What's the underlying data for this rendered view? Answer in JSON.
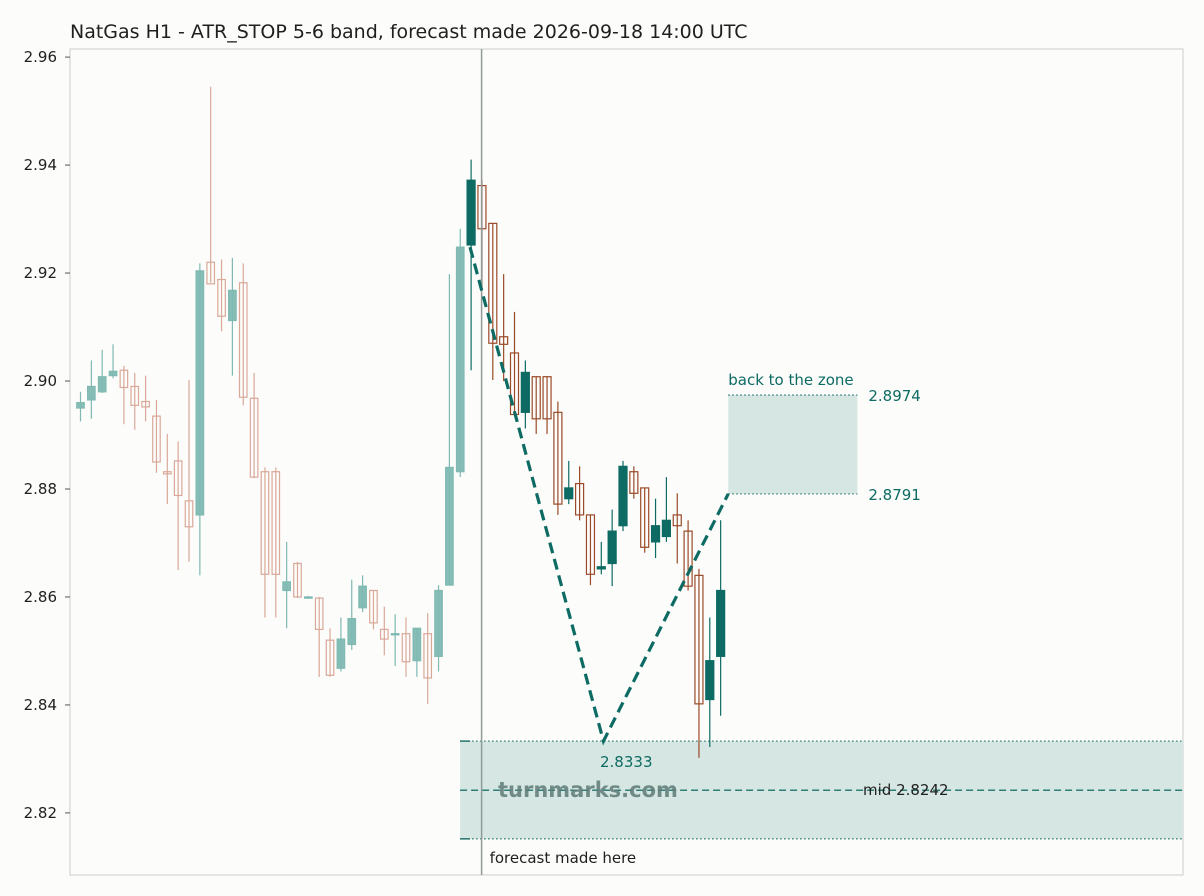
{
  "chart_data": {
    "type": "candlestick",
    "title": "NatGas H1 - ATR_STOP 5-6 band, forecast made 2026-09-18 14:00 UTC",
    "ylim": [
      2.8085,
      2.9615
    ],
    "yticks": [
      2.82,
      2.84,
      2.86,
      2.88,
      2.9,
      2.92,
      2.94,
      2.96
    ],
    "n_bars": 101,
    "forecast_bar_index": 36,
    "history": [
      {
        "o": 2.895,
        "h": 2.898,
        "l": 2.8925,
        "c": 2.896
      },
      {
        "o": 2.8965,
        "h": 2.9038,
        "l": 2.893,
        "c": 2.899
      },
      {
        "o": 2.898,
        "h": 2.9058,
        "l": 2.8978,
        "c": 2.9008
      },
      {
        "o": 2.901,
        "h": 2.9068,
        "l": 2.9005,
        "c": 2.9018
      },
      {
        "o": 2.902,
        "h": 2.9028,
        "l": 2.892,
        "c": 2.8988
      },
      {
        "o": 2.899,
        "h": 2.9015,
        "l": 2.891,
        "c": 2.8955
      },
      {
        "o": 2.8962,
        "h": 2.901,
        "l": 2.8925,
        "c": 2.8952
      },
      {
        "o": 2.8935,
        "h": 2.8965,
        "l": 2.883,
        "c": 2.885
      },
      {
        "o": 2.8832,
        "h": 2.8902,
        "l": 2.8772,
        "c": 2.8828
      },
      {
        "o": 2.8852,
        "h": 2.8888,
        "l": 2.865,
        "c": 2.8788
      },
      {
        "o": 2.8778,
        "h": 2.9002,
        "l": 2.8665,
        "c": 2.873
      },
      {
        "o": 2.8752,
        "h": 2.9218,
        "l": 2.864,
        "c": 2.9204
      },
      {
        "o": 2.922,
        "h": 2.9545,
        "l": 2.9182,
        "c": 2.918
      },
      {
        "o": 2.9188,
        "h": 2.9225,
        "l": 2.9092,
        "c": 2.912
      },
      {
        "o": 2.9112,
        "h": 2.9228,
        "l": 2.901,
        "c": 2.9168
      },
      {
        "o": 2.9182,
        "h": 2.9218,
        "l": 2.8955,
        "c": 2.897
      },
      {
        "o": 2.8968,
        "h": 2.9015,
        "l": 2.882,
        "c": 2.8822
      },
      {
        "o": 2.8832,
        "h": 2.884,
        "l": 2.8562,
        "c": 2.8642
      },
      {
        "o": 2.8832,
        "h": 2.884,
        "l": 2.8562,
        "c": 2.8642
      },
      {
        "o": 2.8612,
        "h": 2.8702,
        "l": 2.8542,
        "c": 2.8628
      },
      {
        "o": 2.8662,
        "h": 2.8665,
        "l": 2.8598,
        "c": 2.86
      },
      {
        "o": 2.86,
        "h": 2.8602,
        "l": 2.8598,
        "c": 2.86
      },
      {
        "o": 2.8598,
        "h": 2.86,
        "l": 2.8452,
        "c": 2.854
      },
      {
        "o": 2.852,
        "h": 2.8542,
        "l": 2.8452,
        "c": 2.8455
      },
      {
        "o": 2.8468,
        "h": 2.8562,
        "l": 2.8462,
        "c": 2.8522
      },
      {
        "o": 2.8512,
        "h": 2.8632,
        "l": 2.8502,
        "c": 2.856
      },
      {
        "o": 2.858,
        "h": 2.864,
        "l": 2.8572,
        "c": 2.862
      },
      {
        "o": 2.8612,
        "h": 2.8612,
        "l": 2.854,
        "c": 2.8552
      },
      {
        "o": 2.854,
        "h": 2.8582,
        "l": 2.8492,
        "c": 2.8522
      },
      {
        "o": 2.8532,
        "h": 2.8568,
        "l": 2.8472,
        "c": 2.8532
      },
      {
        "o": 2.8532,
        "h": 2.8562,
        "l": 2.8452,
        "c": 2.848
      },
      {
        "o": 2.8482,
        "h": 2.8542,
        "l": 2.8452,
        "c": 2.8542
      },
      {
        "o": 2.8532,
        "h": 2.857,
        "l": 2.8402,
        "c": 2.845
      },
      {
        "o": 2.849,
        "h": 2.8622,
        "l": 2.8462,
        "c": 2.8612
      },
      {
        "o": 2.8622,
        "h": 2.9198,
        "l": 2.8622,
        "c": 2.884
      },
      {
        "o": 2.8832,
        "h": 2.9282,
        "l": 2.8822,
        "c": 2.9248
      }
    ],
    "forecast": [
      {
        "o": 2.9252,
        "h": 2.941,
        "l": 2.902,
        "c": 2.9372
      },
      {
        "o": 2.9362,
        "h": 2.9372,
        "l": 2.9172,
        "c": 2.9282
      },
      {
        "o": 2.9292,
        "h": 2.9292,
        "l": 2.9002,
        "c": 2.907
      },
      {
        "o": 2.9082,
        "h": 2.9198,
        "l": 2.9,
        "c": 2.9068
      },
      {
        "o": 2.9052,
        "h": 2.9128,
        "l": 2.8938,
        "c": 2.8938
      },
      {
        "o": 2.8942,
        "h": 2.9038,
        "l": 2.8912,
        "c": 2.9016
      },
      {
        "o": 2.9008,
        "h": 2.9008,
        "l": 2.8902,
        "c": 2.893
      },
      {
        "o": 2.9008,
        "h": 2.9008,
        "l": 2.8902,
        "c": 2.893
      },
      {
        "o": 2.8942,
        "h": 2.8962,
        "l": 2.8752,
        "c": 2.8772
      },
      {
        "o": 2.8782,
        "h": 2.8852,
        "l": 2.8772,
        "c": 2.8802
      },
      {
        "o": 2.881,
        "h": 2.8842,
        "l": 2.8742,
        "c": 2.8752
      },
      {
        "o": 2.8752,
        "h": 2.8752,
        "l": 2.8622,
        "c": 2.8642
      },
      {
        "o": 2.8652,
        "h": 2.8702,
        "l": 2.8642,
        "c": 2.8656
      },
      {
        "o": 2.8662,
        "h": 2.8762,
        "l": 2.862,
        "c": 2.8722
      },
      {
        "o": 2.8732,
        "h": 2.8852,
        "l": 2.8722,
        "c": 2.8842
      },
      {
        "o": 2.8832,
        "h": 2.8842,
        "l": 2.8782,
        "c": 2.8792
      },
      {
        "o": 2.8802,
        "h": 2.8802,
        "l": 2.8682,
        "c": 2.8692
      },
      {
        "o": 2.8702,
        "h": 2.8782,
        "l": 2.8672,
        "c": 2.8732
      },
      {
        "o": 2.8712,
        "h": 2.8822,
        "l": 2.8702,
        "c": 2.8742
      },
      {
        "o": 2.8752,
        "h": 2.8792,
        "l": 2.8662,
        "c": 2.8732
      },
      {
        "o": 2.8722,
        "h": 2.8742,
        "l": 2.8612,
        "c": 2.862
      },
      {
        "o": 2.864,
        "h": 2.8652,
        "l": 2.8302,
        "c": 2.8402
      },
      {
        "o": 2.841,
        "h": 2.8562,
        "l": 2.8322,
        "c": 2.8482
      },
      {
        "o": 2.849,
        "h": 2.8742,
        "l": 2.838,
        "c": 2.8612
      }
    ],
    "path": [
      {
        "bar": 35.9,
        "y": 2.9248
      },
      {
        "bar": 48.2,
        "y": 2.8333
      },
      {
        "bar": 59.7,
        "y": 2.8791
      }
    ],
    "target_zone": {
      "label": "back to the zone",
      "low": 2.8791,
      "high": 2.8974,
      "label_low": "2.8791",
      "label_high": "2.8974",
      "start_bar": 59.7,
      "end_bar": 71.6
    },
    "stop_zone": {
      "low": 2.8152,
      "high": 2.8333,
      "mid": 2.8242,
      "label_low": "2.8333",
      "mid_label": "mid 2.8242"
    },
    "forecast_label": "forecast made here",
    "watermark": "turnmarks.com",
    "colors": {
      "up_hist": "#7fb9b2",
      "down_hist": "#d9a899",
      "up": "#0d6b63",
      "down": "#9a4a28",
      "zone_fill": "#d6e7e3",
      "zone_line": "#2f7d74",
      "accent": "#0d6b63",
      "vline": "#8f9a99"
    }
  }
}
